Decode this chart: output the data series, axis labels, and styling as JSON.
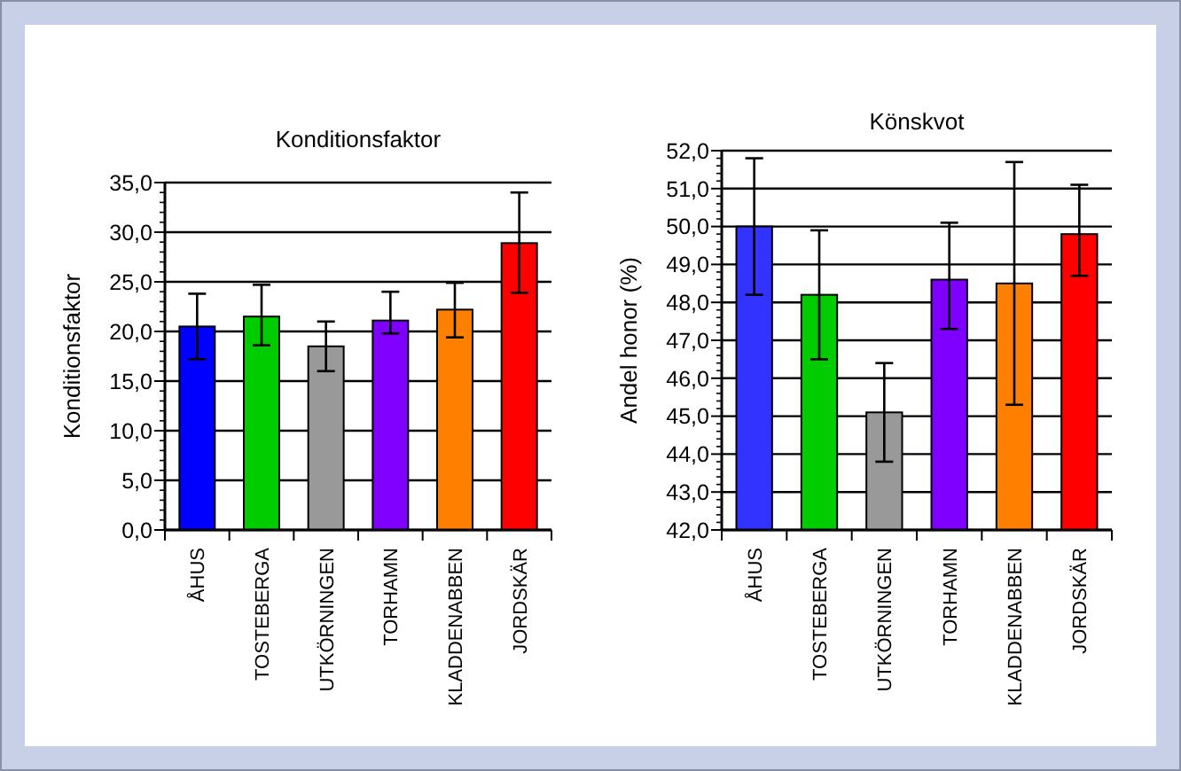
{
  "chart_data": [
    {
      "type": "bar",
      "title": "Konditionsfaktor",
      "ylabel": "Konditionsfaktor",
      "categories": [
        "ÅHUS",
        "TOSTEBERGA",
        "UTKÖRNINGEN",
        "TORHAMN",
        "KLADDENABBEN",
        "JORDSKÄR"
      ],
      "values": [
        20.5,
        21.5,
        18.5,
        21.1,
        22.2,
        28.9
      ],
      "colors": [
        "#0000ff",
        "#00cc00",
        "#999999",
        "#7f00ff",
        "#ff8000",
        "#ff0000"
      ],
      "errors": [
        [
          17.2,
          23.8
        ],
        [
          18.6,
          24.7
        ],
        [
          16.0,
          21.0
        ],
        [
          19.8,
          24.0
        ],
        [
          19.4,
          24.9
        ],
        [
          23.9,
          34.0
        ]
      ],
      "ylim": [
        0,
        35
      ],
      "yticks": [
        {
          "value": 0,
          "label": "0,0"
        },
        {
          "value": 5,
          "label": "5,0"
        },
        {
          "value": 10,
          "label": "10,0"
        },
        {
          "value": 15,
          "label": "15,0"
        },
        {
          "value": 20,
          "label": "20,0"
        },
        {
          "value": 25,
          "label": "25,0"
        },
        {
          "value": 30,
          "label": "30,0"
        },
        {
          "value": 35,
          "label": "35,0"
        }
      ],
      "grid": "y"
    },
    {
      "type": "bar",
      "title": "Könskvot",
      "ylabel": "Andel honor (%)",
      "categories": [
        "ÅHUS",
        "TOSTEBERGA",
        "UTKÖRNINGEN",
        "TORHAMN",
        "KLADDENABBEN",
        "JORDSKÄR"
      ],
      "values": [
        50.0,
        48.2,
        45.1,
        48.6,
        48.5,
        49.8
      ],
      "colors": [
        "#3333ff",
        "#00cc00",
        "#999999",
        "#7f00ff",
        "#ff8000",
        "#ff0000"
      ],
      "errors": [
        [
          48.2,
          51.8
        ],
        [
          46.5,
          49.9
        ],
        [
          43.8,
          46.4
        ],
        [
          47.3,
          50.1
        ],
        [
          45.3,
          51.7
        ],
        [
          48.7,
          51.1
        ]
      ],
      "ylim": [
        42,
        52
      ],
      "yticks": [
        {
          "value": 42,
          "label": "42,0"
        },
        {
          "value": 43,
          "label": "43,0"
        },
        {
          "value": 44,
          "label": "44,0"
        },
        {
          "value": 45,
          "label": "45,0"
        },
        {
          "value": 46,
          "label": "46,0"
        },
        {
          "value": 47,
          "label": "47,0"
        },
        {
          "value": 48,
          "label": "48,0"
        },
        {
          "value": 49,
          "label": "49,0"
        },
        {
          "value": 50,
          "label": "50,0"
        },
        {
          "value": 51,
          "label": "51,0"
        },
        {
          "value": 52,
          "label": "52,0"
        }
      ],
      "grid": "y"
    }
  ]
}
